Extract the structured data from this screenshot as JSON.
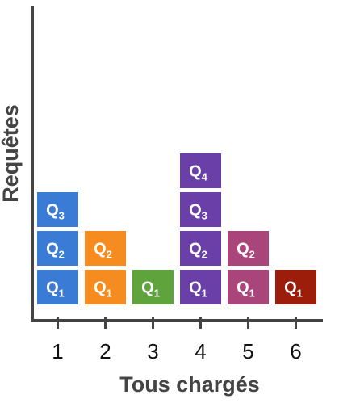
{
  "chart_data": {
    "type": "bar",
    "subtype": "stacked-blocks",
    "xlabel": "Tous chargés",
    "ylabel": "Requêtes",
    "categories": [
      "1",
      "2",
      "3",
      "4",
      "5",
      "6"
    ],
    "values": [
      3,
      2,
      1,
      4,
      2,
      1
    ],
    "block_label_prefix": "Q",
    "colors": [
      "#3a7bd5",
      "#f68b1f",
      "#5ea33b",
      "#6a3fa8",
      "#a9457a",
      "#9b1d0a"
    ],
    "grid": false,
    "legend": "none"
  }
}
